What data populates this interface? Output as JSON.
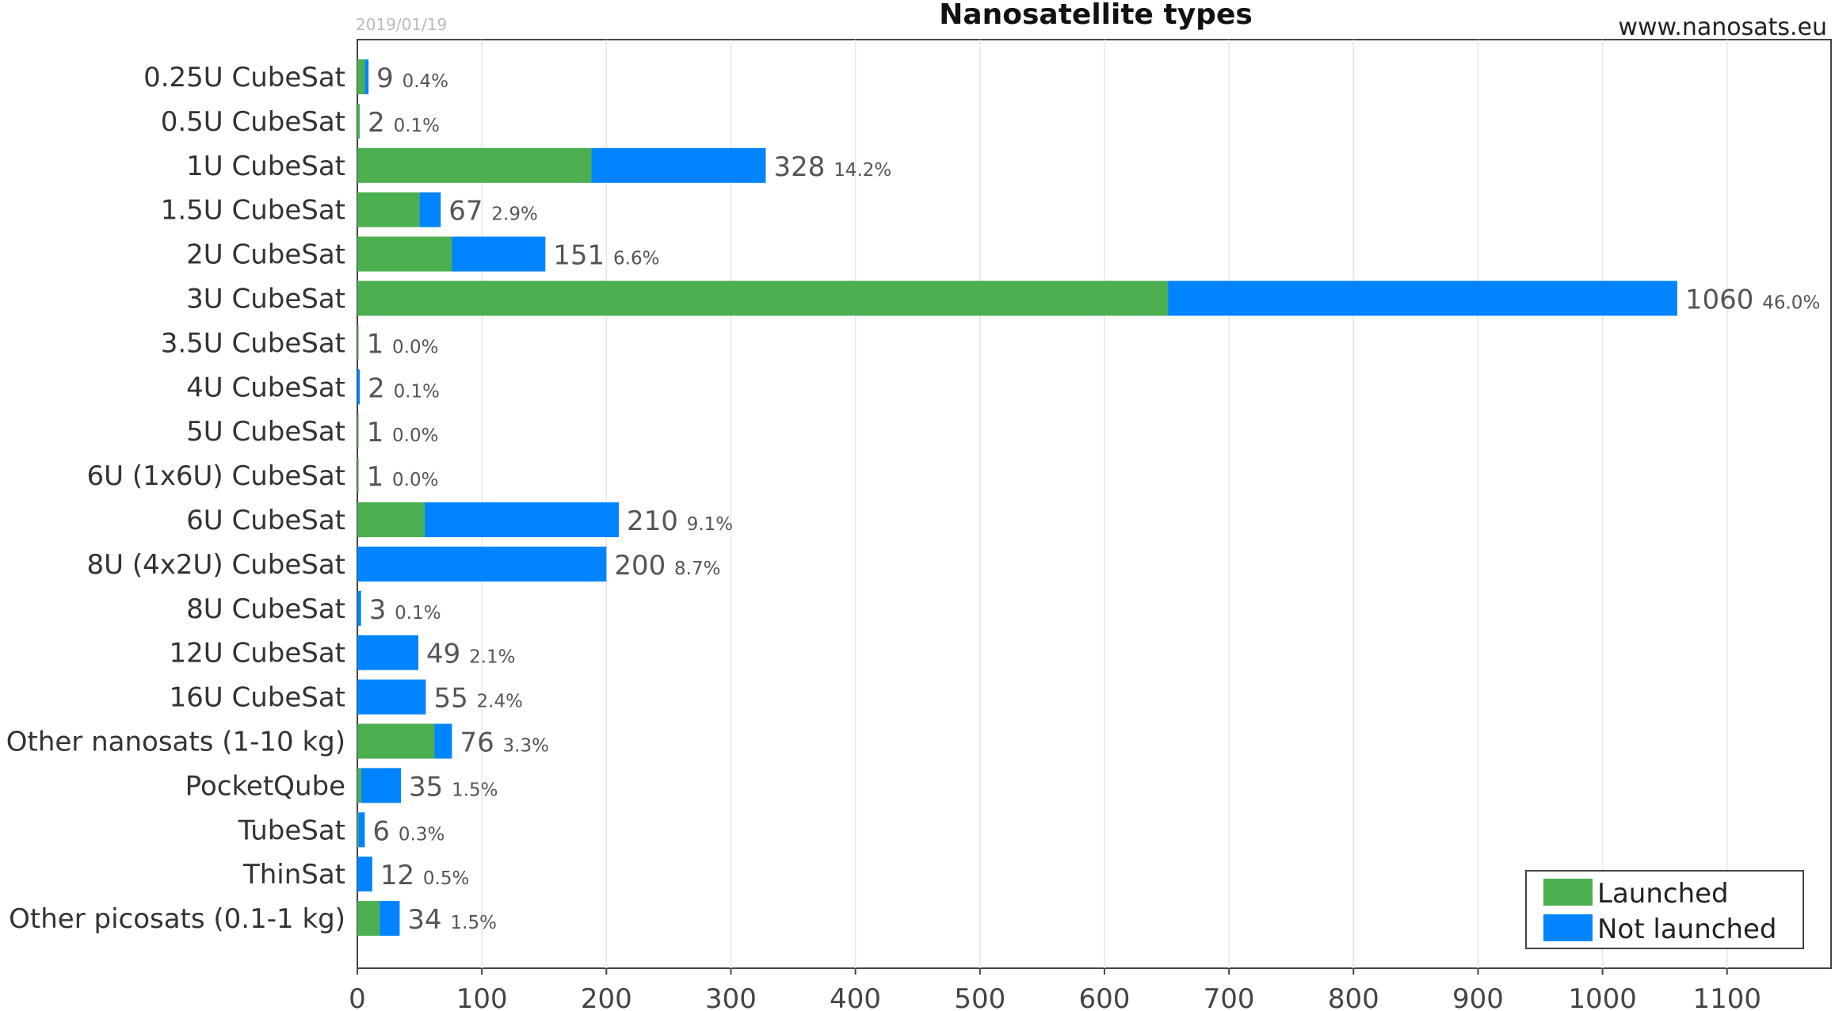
{
  "header": {
    "title": "Nanosatellite types",
    "date": "2019/01/19",
    "website": "www.nanosats.eu"
  },
  "chart_data": {
    "type": "bar",
    "orientation": "horizontal",
    "stacked": true,
    "title": "Nanosatellite types",
    "xlabel": "",
    "ylabel": "",
    "xlim": [
      0,
      1170
    ],
    "xticks": [
      0,
      100,
      200,
      300,
      400,
      500,
      600,
      700,
      800,
      900,
      1000,
      1100
    ],
    "grid": true,
    "legend_position": "bottom-right",
    "categories": [
      "0.25U CubeSat",
      "0.5U CubeSat",
      "1U CubeSat",
      "1.5U CubeSat",
      "2U CubeSat",
      "3U CubeSat",
      "3.5U CubeSat",
      "4U CubeSat",
      "5U CubeSat",
      "6U (1x6U) CubeSat",
      "6U CubeSat",
      "8U (4x2U) CubeSat",
      "8U CubeSat",
      "12U CubeSat",
      "16U CubeSat",
      "Other nanosats (1-10 kg)",
      "PocketQube",
      "TubeSat",
      "ThinSat",
      "Other picosats (0.1-1 kg)"
    ],
    "series": [
      {
        "name": "Launched",
        "color": "#4caf50",
        "values": [
          6,
          2,
          188,
          50,
          76,
          651,
          1,
          0,
          1,
          1,
          54,
          0,
          0,
          0,
          0,
          62,
          3,
          1,
          0,
          18
        ]
      },
      {
        "name": "Not launched",
        "color": "#0084ff",
        "values": [
          3,
          0,
          140,
          17,
          75,
          409,
          0,
          2,
          0,
          0,
          156,
          200,
          3,
          49,
          55,
          14,
          32,
          5,
          12,
          16
        ]
      }
    ],
    "totals": [
      9,
      2,
      328,
      67,
      151,
      1060,
      1,
      2,
      1,
      1,
      210,
      200,
      3,
      49,
      55,
      76,
      35,
      6,
      12,
      34
    ],
    "percent_labels": [
      "0.4%",
      "0.1%",
      "14.2%",
      "2.9%",
      "6.6%",
      "46.0%",
      "0.0%",
      "0.1%",
      "0.0%",
      "0.0%",
      "9.1%",
      "8.7%",
      "0.1%",
      "2.1%",
      "2.4%",
      "3.3%",
      "1.5%",
      "0.3%",
      "0.5%",
      "1.5%"
    ]
  }
}
